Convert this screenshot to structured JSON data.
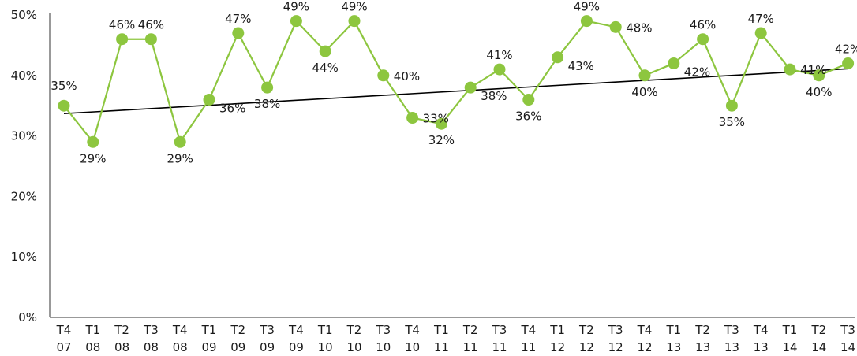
{
  "chart_data": {
    "type": "line",
    "categories": [
      "T4 07",
      "T1 08",
      "T2 08",
      "T3 08",
      "T4 08",
      "T1 09",
      "T2 09",
      "T3 09",
      "T4 09",
      "T1 10",
      "T2 10",
      "T3 10",
      "T4 10",
      "T1 11",
      "T2 11",
      "T3 11",
      "T4 11",
      "T1 12",
      "T2 12",
      "T3 12",
      "T4 12",
      "T1 13",
      "T2 13",
      "T3 13",
      "T4 13",
      "T1 14",
      "T2 14",
      "T3 14"
    ],
    "series": [
      {
        "values": [
          35,
          29,
          46,
          46,
          29,
          36,
          47,
          38,
          49,
          44,
          49,
          40,
          33,
          32,
          38,
          41,
          36,
          43,
          49,
          48,
          40,
          42,
          46,
          35,
          47,
          41,
          40,
          42
        ],
        "labels": [
          "35%",
          "29%",
          "46%",
          "46%",
          "29%",
          "36%",
          "47%",
          "38%",
          "49%",
          "44%",
          "49%",
          "40%",
          "33%",
          "32%",
          "38%",
          "41%",
          "36%",
          "43%",
          "49%",
          "48%",
          "40%",
          "42%",
          "46%",
          "35%",
          "47%",
          "41%",
          "40%",
          "42%"
        ],
        "color": "#8dc63f"
      }
    ],
    "trendline": {
      "start": 33.7,
      "end": 41.1,
      "color": "#000000"
    },
    "ylim": [
      0,
      50
    ],
    "yticks": [
      "0%",
      "10%",
      "20%",
      "30%",
      "40%",
      "50%"
    ],
    "grid": false,
    "title": "",
    "xlabel": "",
    "ylabel": ""
  }
}
